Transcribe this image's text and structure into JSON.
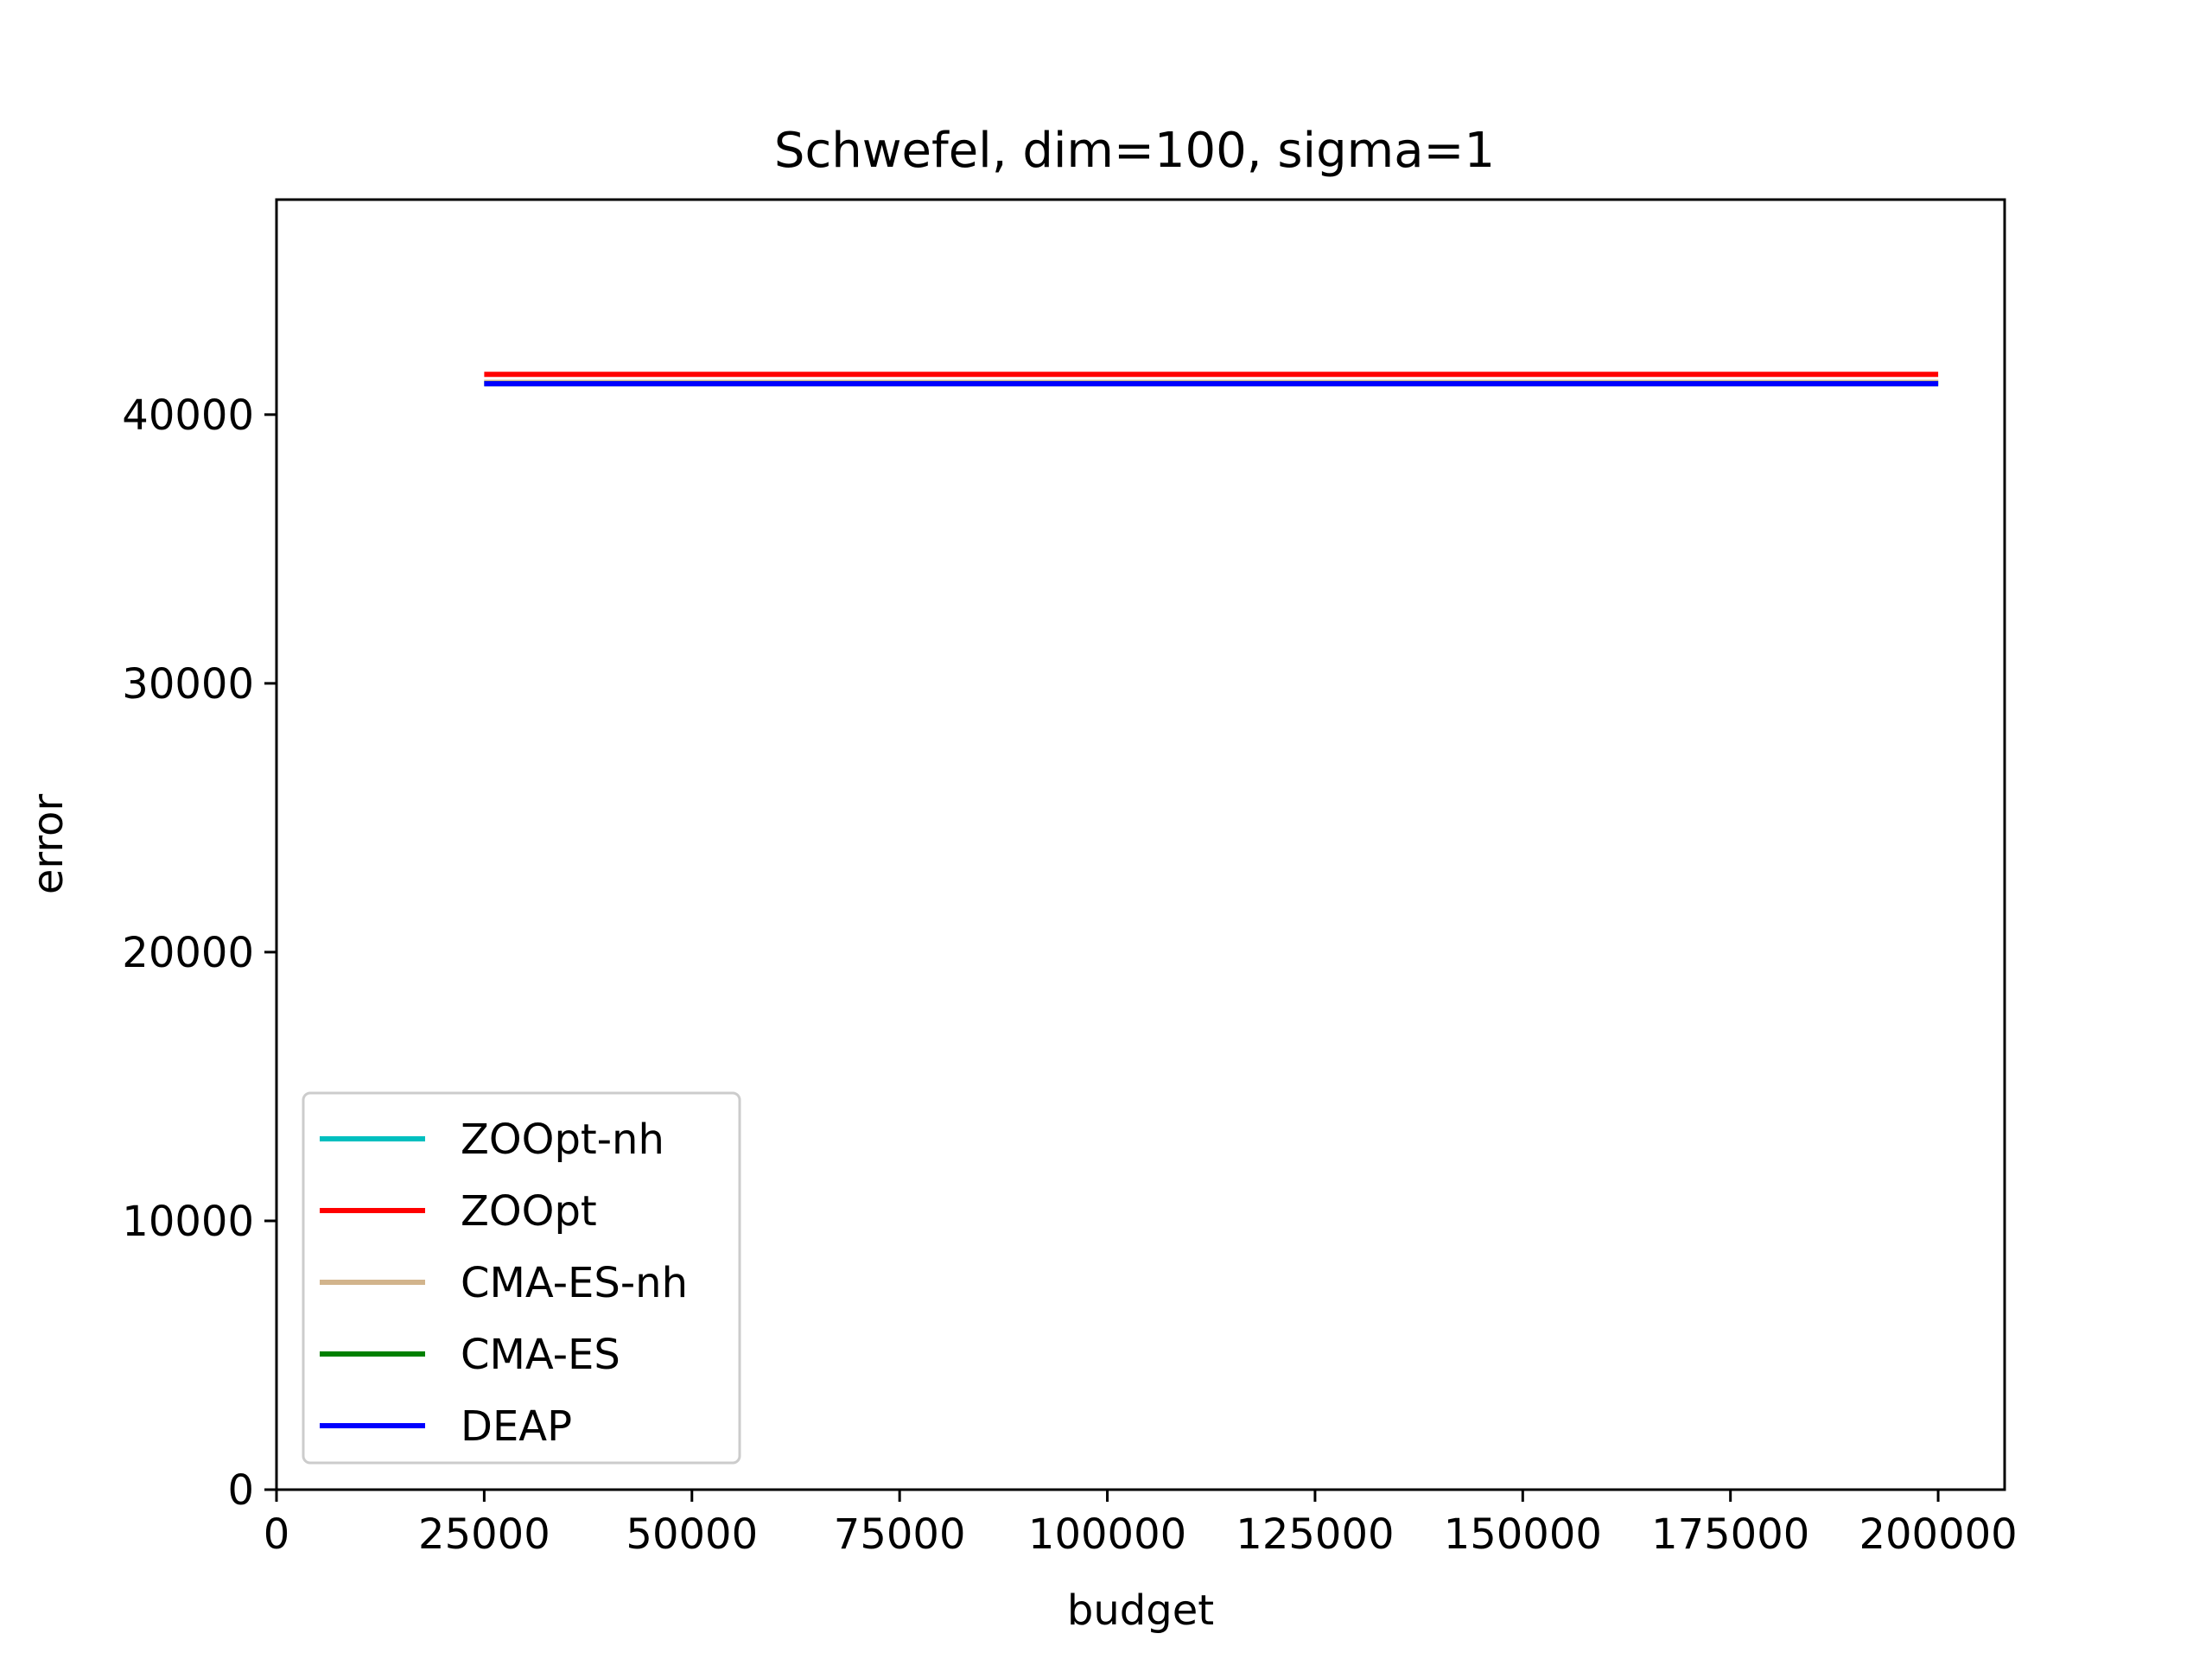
{
  "chart_data": {
    "type": "line",
    "title": "Schwefel, dim=100, sigma=1",
    "xlabel": "budget",
    "ylabel": "error",
    "xlim": [
      0,
      208000
    ],
    "ylim": [
      0,
      48000
    ],
    "xticks": [
      0,
      25000,
      50000,
      75000,
      100000,
      125000,
      150000,
      175000,
      200000
    ],
    "xtick_labels": [
      "0",
      "25000",
      "50000",
      "75000",
      "100000",
      "125000",
      "150000",
      "175000",
      "200000"
    ],
    "yticks": [
      0,
      10000,
      20000,
      30000,
      40000
    ],
    "ytick_labels": [
      "0",
      "10000",
      "20000",
      "30000",
      "40000"
    ],
    "grid": false,
    "legend_position": "lower-left",
    "x": [
      25000,
      50000,
      75000,
      100000,
      125000,
      150000,
      175000,
      200000
    ],
    "series": [
      {
        "name": "ZOOpt-nh",
        "color": "#00bfbf",
        "values": [
          41200,
          41200,
          41200,
          41200,
          41200,
          41200,
          41200,
          41200
        ]
      },
      {
        "name": "ZOOpt",
        "color": "#ff0000",
        "values": [
          41500,
          41500,
          41500,
          41500,
          41500,
          41500,
          41500,
          41500
        ]
      },
      {
        "name": "CMA-ES-nh",
        "color": "#d2b48c",
        "values": [
          41200,
          41200,
          41200,
          41200,
          41200,
          41200,
          41200,
          41200
        ]
      },
      {
        "name": "CMA-ES",
        "color": "#008000",
        "values": [
          41150,
          41150,
          41150,
          41150,
          41150,
          41150,
          41150,
          41150
        ]
      },
      {
        "name": "DEAP",
        "color": "#0000ff",
        "values": [
          41150,
          41150,
          41150,
          41150,
          41150,
          41150,
          41150,
          41150
        ]
      }
    ]
  }
}
